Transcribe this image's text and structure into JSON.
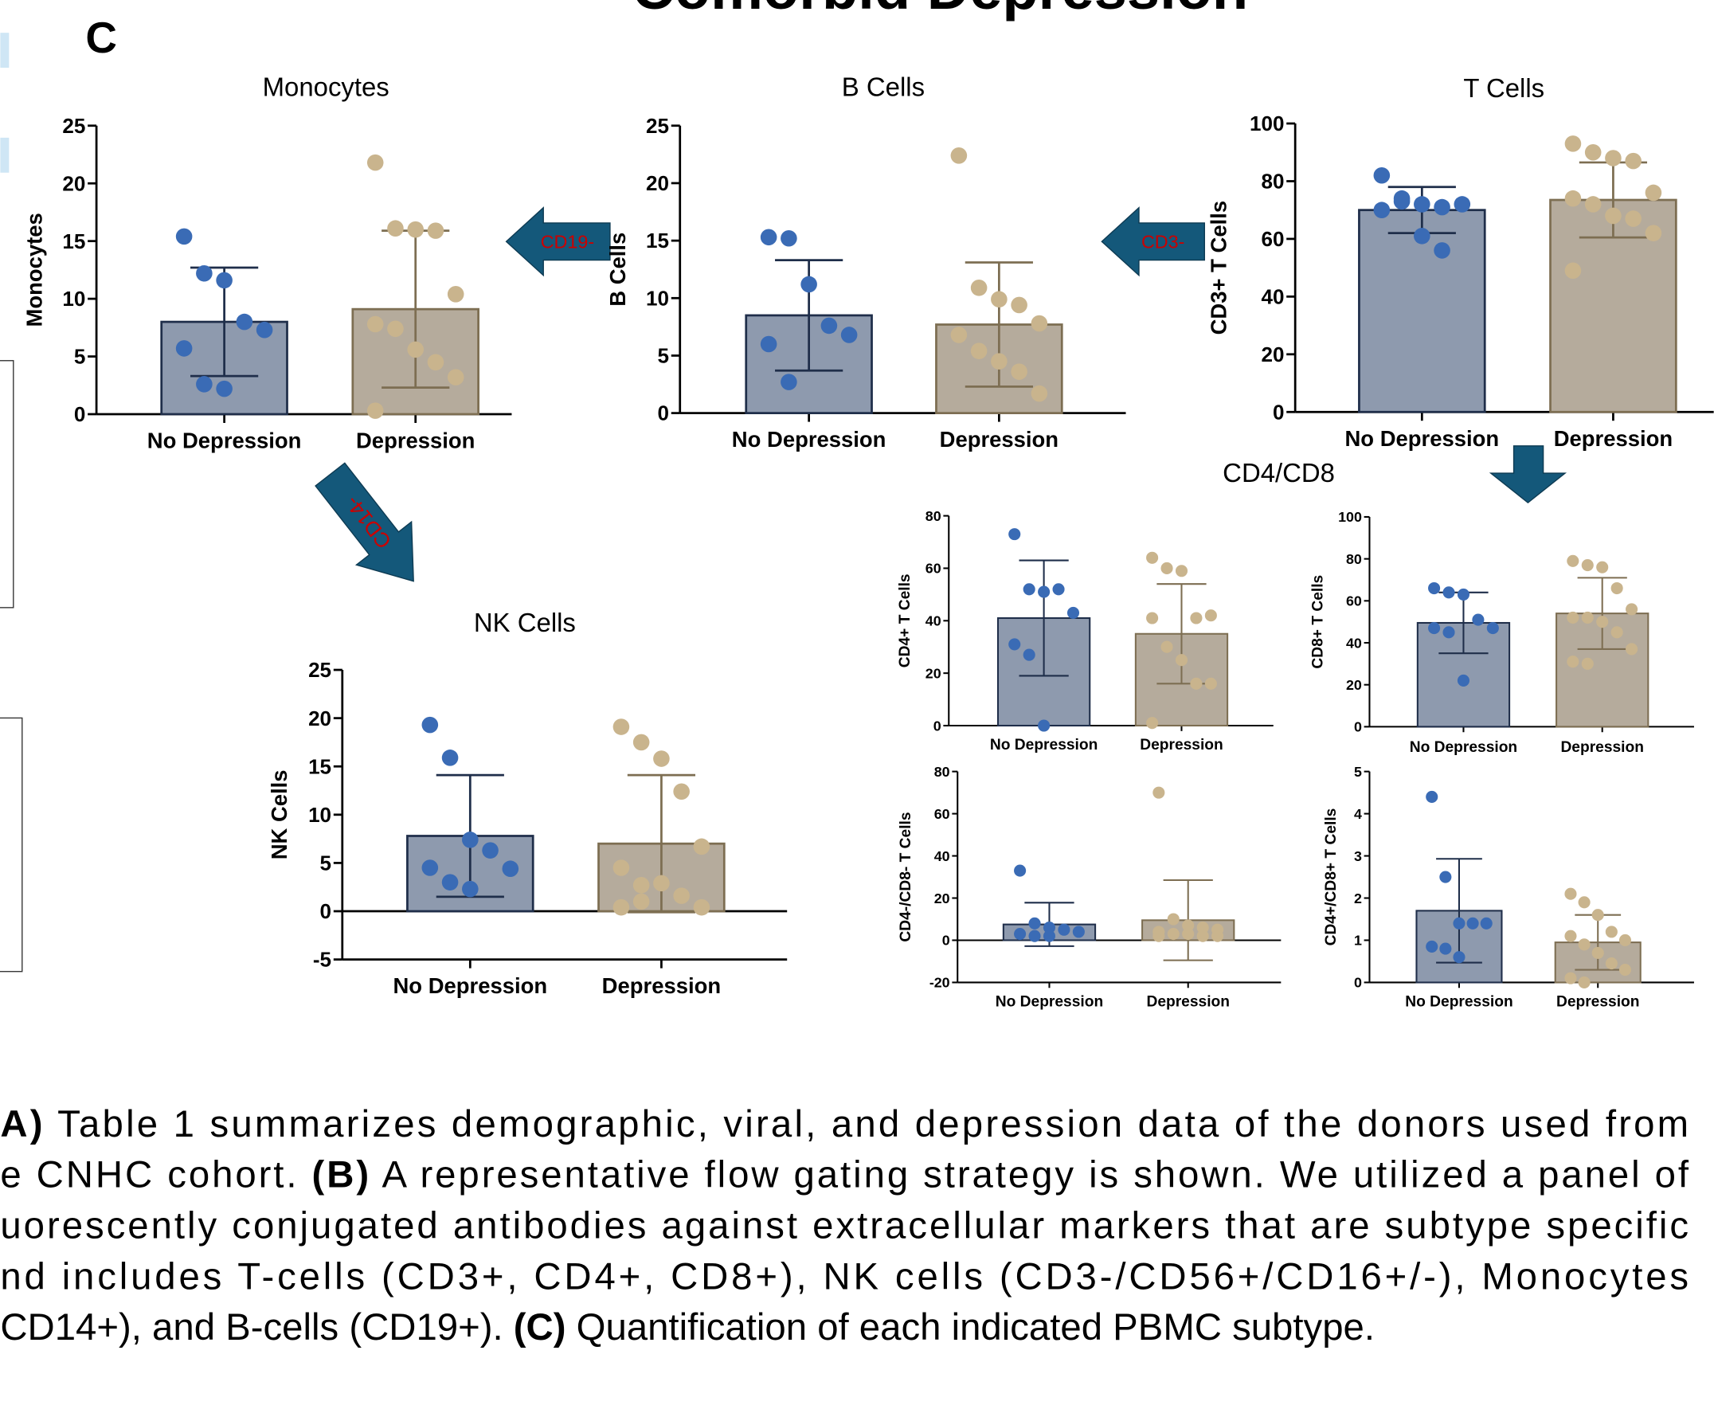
{
  "heading": "Comorbid Depression",
  "panel_label": "C",
  "arrows": [
    "CD19-",
    "CD3-",
    "CD14-"
  ],
  "group_label": "CD4/CD8",
  "chart_data": [
    {
      "type": "bar",
      "title": "Monocytes",
      "y_label": "Monocytes",
      "categories": [
        "No Depression",
        "Depression"
      ],
      "values": [
        8.0,
        9.1
      ],
      "errors": [
        4.7,
        6.8
      ],
      "points": [
        [
          15.4,
          12.2,
          11.6,
          8.0,
          7.3,
          5.7,
          2.6,
          2.2
        ],
        [
          21.8,
          16.1,
          16.0,
          15.9,
          10.4,
          7.8,
          7.4,
          5.6,
          4.5,
          3.2,
          0.3
        ]
      ],
      "colors": [
        "#8e9aae",
        "#b5ab9c"
      ],
      "edge_colors": [
        "#1f2e4a",
        "#7d6e52"
      ],
      "point_colors": [
        "#3a6bb5",
        "#c9b48d"
      ],
      "ylim": [
        0,
        25
      ],
      "yticks": [
        0,
        5,
        10,
        15,
        20,
        25
      ]
    },
    {
      "type": "bar",
      "title": "B Cells",
      "y_label": "B Cells",
      "categories": [
        "No Depression",
        "Depression"
      ],
      "values": [
        8.5,
        7.7
      ],
      "errors": [
        4.8,
        5.4
      ],
      "points": [
        [
          15.3,
          15.2,
          11.2,
          7.6,
          6.8,
          6.0,
          2.7
        ],
        [
          22.4,
          10.9,
          9.9,
          9.4,
          7.8,
          6.8,
          5.4,
          4.5,
          3.6,
          1.7
        ]
      ],
      "colors": [
        "#8e9aae",
        "#b5ab9c"
      ],
      "edge_colors": [
        "#1f2e4a",
        "#7d6e52"
      ],
      "point_colors": [
        "#3a6bb5",
        "#c9b48d"
      ],
      "ylim": [
        0,
        25
      ],
      "yticks": [
        0,
        5,
        10,
        15,
        20,
        25
      ]
    },
    {
      "type": "bar",
      "title": "T Cells",
      "y_label": "CD3+ T Cells",
      "categories": [
        "No Depression",
        "Depression"
      ],
      "values": [
        70,
        73.5
      ],
      "errors": [
        8,
        13
      ],
      "points": [
        [
          82,
          74,
          72,
          71,
          72,
          70,
          73,
          61,
          56
        ],
        [
          93,
          90,
          88,
          87,
          76,
          74,
          72,
          68,
          67,
          62,
          49
        ]
      ],
      "colors": [
        "#8e9aae",
        "#b5ab9c"
      ],
      "edge_colors": [
        "#1f2e4a",
        "#7d6e52"
      ],
      "point_colors": [
        "#3a6bb5",
        "#c9b48d"
      ],
      "ylim": [
        0,
        100
      ],
      "yticks": [
        0,
        20,
        40,
        60,
        80,
        100
      ]
    },
    {
      "type": "bar",
      "title": "NK Cells",
      "y_label": "NK Cells",
      "categories": [
        "No Depression",
        "Depression"
      ],
      "values": [
        7.8,
        7.0
      ],
      "errors": [
        6.3,
        7.1
      ],
      "points": [
        [
          19.3,
          15.9,
          7.4,
          6.3,
          4.4,
          4.5,
          3.0,
          2.3
        ],
        [
          19.1,
          17.5,
          15.8,
          12.4,
          6.7,
          4.5,
          2.7,
          2.9,
          1.6,
          0.4,
          0.4,
          1.0
        ]
      ],
      "colors": [
        "#8e9aae",
        "#b5ab9c"
      ],
      "edge_colors": [
        "#1f2e4a",
        "#7d6e52"
      ],
      "point_colors": [
        "#3a6bb5",
        "#c9b48d"
      ],
      "ylim": [
        -5,
        25
      ],
      "yticks": [
        -5,
        0,
        5,
        10,
        15,
        20,
        25
      ]
    },
    {
      "type": "bar",
      "y_label": "CD4+ T Cells",
      "categories": [
        "No Depression",
        "Depression"
      ],
      "values": [
        41,
        35
      ],
      "errors": [
        22,
        19
      ],
      "points": [
        [
          73,
          52,
          51,
          52,
          43,
          31,
          27,
          0
        ],
        [
          64,
          60,
          59,
          41,
          42,
          41,
          30,
          25,
          16,
          16,
          1
        ]
      ],
      "colors": [
        "#8e9aae",
        "#b5ab9c"
      ],
      "edge_colors": [
        "#1f2e4a",
        "#7d6e52"
      ],
      "point_colors": [
        "#3a6bb5",
        "#c9b48d"
      ],
      "ylim": [
        0,
        80
      ],
      "yticks": [
        0,
        20,
        40,
        60,
        80
      ]
    },
    {
      "type": "bar",
      "y_label": "CD8+ T Cells",
      "categories": [
        "No Depression",
        "Depression"
      ],
      "values": [
        49.5,
        54
      ],
      "errors": [
        14.5,
        17
      ],
      "points": [
        [
          66,
          64,
          63,
          51,
          47,
          47,
          45,
          22
        ],
        [
          79,
          77,
          76,
          66,
          56,
          52,
          52,
          50,
          45,
          37,
          31,
          30
        ]
      ],
      "colors": [
        "#8e9aae",
        "#b5ab9c"
      ],
      "edge_colors": [
        "#1f2e4a",
        "#7d6e52"
      ],
      "point_colors": [
        "#3a6bb5",
        "#c9b48d"
      ],
      "ylim": [
        0,
        100
      ],
      "yticks": [
        0,
        20,
        40,
        60,
        80,
        100
      ]
    },
    {
      "type": "bar",
      "y_label": "CD4-/CD8- T Cells",
      "categories": [
        "No Depression",
        "Depression"
      ],
      "values": [
        7.5,
        9.5
      ],
      "errors": [
        10.3,
        19
      ],
      "points": [
        [
          33,
          8,
          6,
          5,
          4,
          3,
          2,
          2
        ],
        [
          70,
          10,
          7,
          6,
          5,
          4,
          3,
          3,
          2,
          2,
          2
        ]
      ],
      "colors": [
        "#8e9aae",
        "#b5ab9c"
      ],
      "edge_colors": [
        "#1f2e4a",
        "#7d6e52"
      ],
      "point_colors": [
        "#3a6bb5",
        "#c9b48d"
      ],
      "ylim": [
        -20,
        80
      ],
      "yticks": [
        -20,
        0,
        20,
        40,
        60,
        80
      ]
    },
    {
      "type": "bar",
      "y_label": "CD4+/CD8+ T Cells",
      "categories": [
        "No Depression",
        "Depression"
      ],
      "values": [
        1.7,
        0.95
      ],
      "errors": [
        1.23,
        0.65
      ],
      "points": [
        [
          4.4,
          2.5,
          1.4,
          1.4,
          1.4,
          0.85,
          0.8,
          0.6
        ],
        [
          2.1,
          1.9,
          1.6,
          1.2,
          1.0,
          1.1,
          0.9,
          0.7,
          0.45,
          0.3,
          0.1,
          0.0
        ]
      ],
      "colors": [
        "#8e9aae",
        "#b5ab9c"
      ],
      "edge_colors": [
        "#1f2e4a",
        "#7d6e52"
      ],
      "point_colors": [
        "#3a6bb5",
        "#c9b48d"
      ],
      "ylim": [
        0,
        5
      ],
      "yticks": [
        0,
        1,
        2,
        3,
        4,
        5
      ]
    }
  ],
  "caption": [
    [
      {
        "text": "A)",
        "bold": true
      },
      {
        "text": " Table 1 summarizes demographic, viral, and depression data of the donors used from",
        "bold": false
      }
    ],
    [
      {
        "text": "e CNHC cohort. ",
        "bold": false
      },
      {
        "text": "(B)",
        "bold": true
      },
      {
        "text": " A representative flow gating strategy is shown. We utilized a panel of",
        "bold": false
      }
    ],
    [
      {
        "text": "uorescently conjugated antibodies against extracellular markers that are subtype specific",
        "bold": false
      }
    ],
    [
      {
        "text": "nd includes T-cells (CD3+, CD4+, CD8+), NK cells (CD3-/CD56+/CD16+/-), Monocytes",
        "bold": false
      }
    ],
    [
      {
        "text": "CD14+), and B-cells (CD19+). ",
        "bold": false
      },
      {
        "text": "(C)",
        "bold": true
      },
      {
        "text": " Quantification of each indicated PBMC subtype.",
        "bold": false
      }
    ]
  ]
}
